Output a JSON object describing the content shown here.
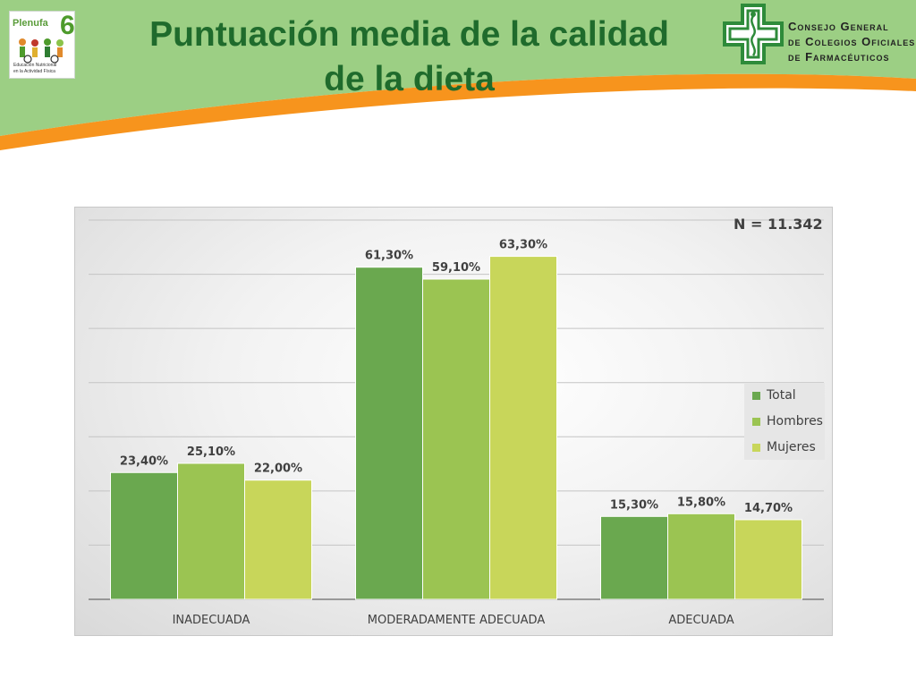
{
  "header": {
    "title_line1": "Puntuación media de la calidad",
    "title_line2": "de la dieta",
    "logo_left": {
      "brand": "Plenufa",
      "brand_number": "6",
      "caption_line1": "Educación Nutricional",
      "caption_line2": "en la Actividad Física"
    },
    "logo_right": {
      "line1": "Consejo General",
      "line2": "de Colegios Oficiales",
      "line3": "de Farmacéuticos"
    }
  },
  "colors": {
    "header_green": "#9ccf84",
    "header_orange": "#f7941d",
    "title_green": "#1f6b2c",
    "series_total": "#6aa84f",
    "series_hombres": "#9bc452",
    "series_mujeres": "#c8d65a"
  },
  "chart_data": {
    "type": "bar",
    "annotation": "N = 11.342",
    "categories": [
      "INADECUADA",
      "MODERADAMENTE ADECUADA",
      "ADECUADA"
    ],
    "series": [
      {
        "name": "Total",
        "values": [
          23.4,
          61.3,
          15.3
        ],
        "labels": [
          "23,40%",
          "61,30%",
          "15,30%"
        ]
      },
      {
        "name": "Hombres",
        "values": [
          25.1,
          59.1,
          15.8
        ],
        "labels": [
          "25,10%",
          "59,10%",
          "15,80%"
        ]
      },
      {
        "name": "Mujeres",
        "values": [
          22.0,
          63.3,
          14.7
        ],
        "labels": [
          "22,00%",
          "63,30%",
          "14,70%"
        ]
      }
    ],
    "ylim": [
      0,
      70
    ],
    "grid": true,
    "legend_position": "right"
  }
}
